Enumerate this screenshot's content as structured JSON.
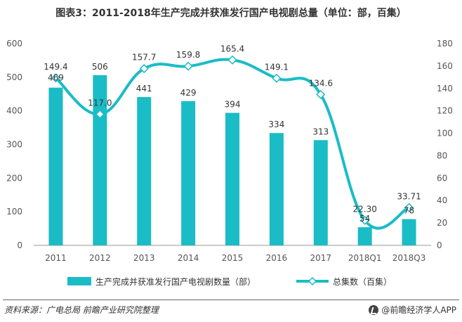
{
  "title": "图表3：2011-2018年生产完成并获准发行国产电视剧总量（单位：部，百集）",
  "source": "资料来源：广电总局 前瞻产业研究院整理",
  "brand": "@前瞻经济学人APP",
  "colors": {
    "bar": "#1ABCC6",
    "line": "#1ABCC6",
    "axis": "#999999",
    "marker_fill": "#ffffff"
  },
  "chart_data": {
    "type": "bar+line",
    "categories": [
      "2011",
      "2012",
      "2013",
      "2014",
      "2015",
      "2016",
      "2017",
      "2018Q1",
      "2018Q3"
    ],
    "series": [
      {
        "name": "生产完成并获准发行国产电视剧数量（部）",
        "type": "bar",
        "axis": "left",
        "values": [
          469,
          506,
          441,
          429,
          394,
          334,
          313,
          54,
          78
        ],
        "labels": [
          "469",
          "506",
          "441",
          "429",
          "394",
          "334",
          "313",
          "54",
          "78"
        ]
      },
      {
        "name": "总集数（百集）",
        "type": "line",
        "axis": "right",
        "values": [
          149.4,
          117.0,
          157.7,
          159.8,
          165.4,
          149.1,
          134.6,
          22.3,
          33.71
        ],
        "labels": [
          "149.4",
          "117.0",
          "157.7",
          "159.8",
          "165.4",
          "149.1",
          "134.6",
          "22.30",
          "33.71"
        ]
      }
    ],
    "y_left": {
      "min": 0,
      "max": 600,
      "ticks": [
        "0",
        "100",
        "200",
        "300",
        "400",
        "500",
        "600"
      ]
    },
    "y_right": {
      "min": 0,
      "max": 180,
      "ticks": [
        "0",
        "20",
        "40",
        "60",
        "80",
        "100",
        "120",
        "140",
        "160",
        "180"
      ]
    },
    "legend_position": "bottom"
  }
}
